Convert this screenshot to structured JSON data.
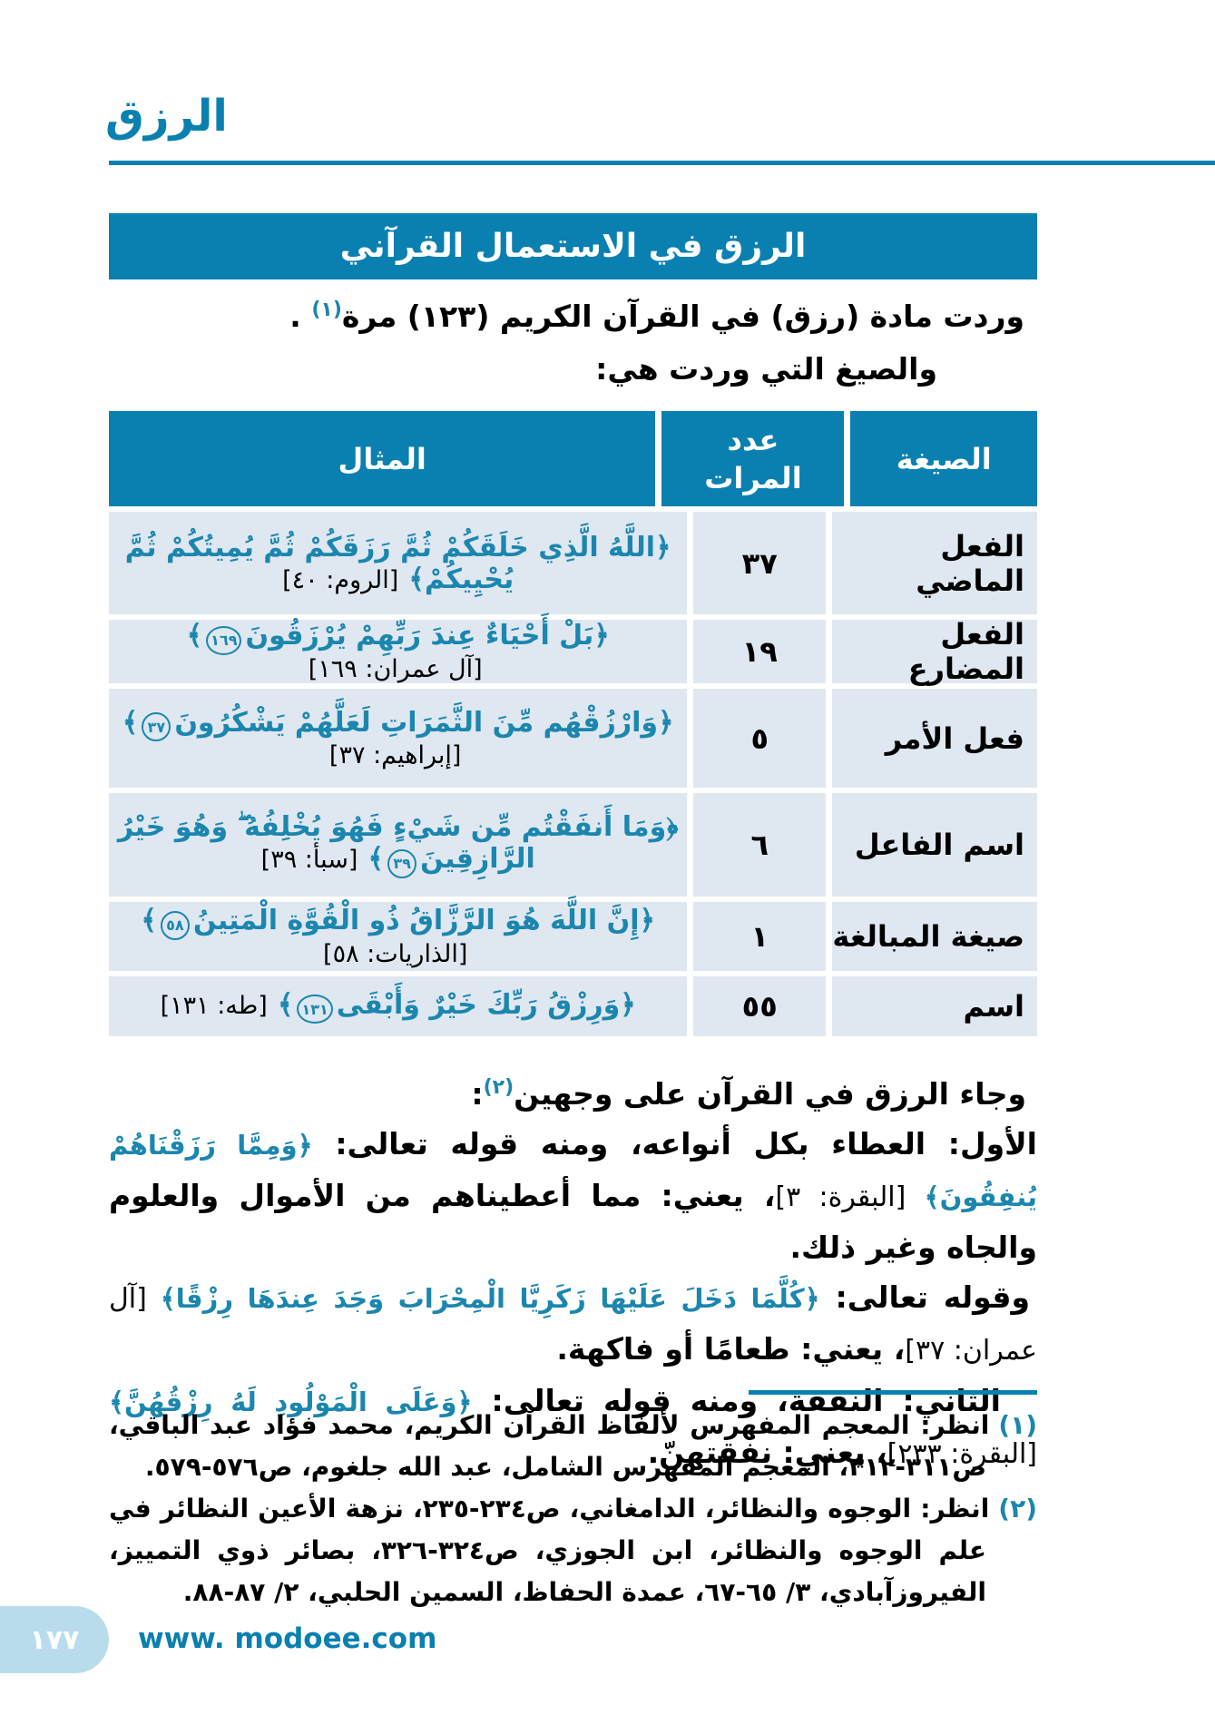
{
  "colors": {
    "primary_blue": "#0a80b0",
    "verse_blue": "#1b86ae",
    "row_bg": "#dfe7f0",
    "pill_bg": "#b8dcec"
  },
  "header": {
    "word": "الرزق"
  },
  "banner": {
    "title": "الرزق في الاستعمال القرآني"
  },
  "intro": {
    "line1_text": "وردت مادة (رزق) في القرآن الكريم (١٢٣) مرة",
    "line1_sup": "(١)",
    "line1_end": " .",
    "line2": "والصيغ التي وردت هي:"
  },
  "table": {
    "headers": {
      "form": "الصيغة",
      "count": "عدد المرات",
      "example": "المثال"
    },
    "rows": [
      {
        "form": "الفعل الماضي",
        "count": "٣٧",
        "verse": "﴿اللَّهُ الَّذِي خَلَقَكُمْ ثُمَّ رَزَقَكُمْ ثُمَّ يُمِيتُكُمْ ثُمَّ يُحْيِيكُمْ",
        "verse_num": "",
        "verse_close": "﴾",
        "ref": "[الروم: ٤٠]"
      },
      {
        "form": "الفعل المضارع",
        "count": "١٩",
        "verse": "﴿بَلْ أَحْيَاءٌ عِندَ رَبِّهِمْ يُرْزَقُونَ",
        "verse_num": "١٦٩",
        "verse_close": "﴾",
        "ref": "[آل عمران: ١٦٩]"
      },
      {
        "form": "فعل الأمر",
        "count": "٥",
        "verse": "﴿وَارْزُقْهُم مِّنَ الثَّمَرَاتِ لَعَلَّهُمْ يَشْكُرُونَ",
        "verse_num": "٣٧",
        "verse_close": "﴾",
        "ref": "[إبراهيم: ٣٧]"
      },
      {
        "form": "اسم الفاعل",
        "count": "٦",
        "verse": "﴿وَمَا أَنفَقْتُم مِّن شَيْءٍ فَهُوَ يُخْلِفُهُ ۖ وَهُوَ خَيْرُ الرَّازِقِينَ",
        "verse_num": "٣٩",
        "verse_close": "﴾",
        "ref": "[سبأ: ٣٩]"
      },
      {
        "form": "صيغة المبالغة",
        "count": "١",
        "verse": "﴿إِنَّ اللَّهَ هُوَ الرَّزَّاقُ ذُو الْقُوَّةِ الْمَتِينُ",
        "verse_num": "٥٨",
        "verse_close": "﴾",
        "ref": "[الذاريات: ٥٨]"
      },
      {
        "form": "اسم",
        "count": "٥٥",
        "verse": "﴿وَرِزْقُ رَبِّكَ خَيْرٌ وَأَبْقَى",
        "verse_num": "١٣١",
        "verse_close": "﴾",
        "ref": "[طه: ١٣١]"
      }
    ]
  },
  "body": {
    "p1_text": "وجاء الرزق في القرآن على وجهين",
    "p1_sup": "(٢)",
    "p1_end": ":",
    "p2_t1": "الأول: العطاء بكل أنواعه، ومنه قوله تعالى: ",
    "p2_verse": "﴿وَمِمَّا رَزَقْنَاهُمْ يُنفِقُونَ﴾",
    "p2_ref": " [البقرة: ٣]",
    "p2_t2": "، يعني: مما أعطيناهم من الأموال والعلوم والجاه وغير ذلك.",
    "p3_t1": "وقوله تعالى: ",
    "p3_verse": "﴿كُلَّمَا دَخَلَ عَلَيْهَا زَكَرِيَّا الْمِحْرَابَ وَجَدَ عِندَهَا رِزْقًا﴾",
    "p3_ref": " [آل عمران: ٣٧]",
    "p3_t2": "، يعني: طعامًا أو فاكهة.",
    "p4_t1": "الثاني: النفقة، ومنه قوله تعالى: ",
    "p4_verse": "﴿وَعَلَى الْمَوْلُودِ لَهُ رِزْقُهُنَّ﴾",
    "p4_ref": " [البقرة: ٢٣٣]",
    "p4_t2": "، يعني: نفقتهنّ."
  },
  "footnotes": [
    {
      "marker": "(١)",
      "text": "انظر: المعجم المفهرس لألفاظ القرآن الكريم، محمد فؤاد عبد الباقي، ص٣١١-٣١٢، المعجم المفهرس الشامل، عبد الله جلغوم، ص٥٧٦-٥٧٩."
    },
    {
      "marker": "(٢)",
      "text": "انظر: الوجوه والنظائر، الدامغاني، ص٢٣٤-٢٣٥، نزهة الأعين النظائر في علم الوجوه والنظائر، ابن الجوزي، ص٣٢٤-٣٢٦، بصائر ذوي التمييز، الفيروزآبادي، ٣/ ٦٥-٦٧، عمدة الحفاظ، السمين الحلبي، ٢/ ٨٧-٨٨."
    }
  ],
  "footer": {
    "page_number": "١٧٧",
    "website": "www. modoee.com"
  }
}
